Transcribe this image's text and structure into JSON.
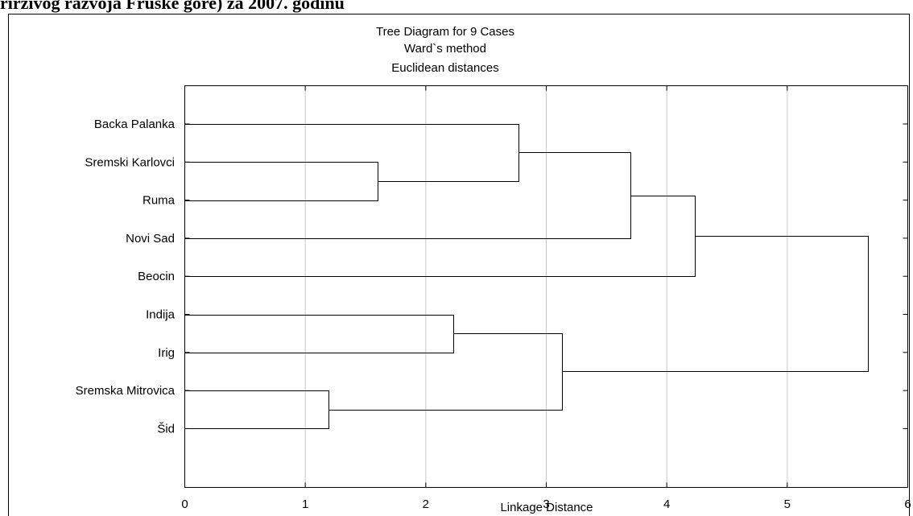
{
  "document": {
    "header_text": "rirzivog razvoja Fruske gore) za 2007. godinu"
  },
  "chart_data": {
    "type": "dendrogram",
    "title_lines": [
      "Tree Diagram for 9 Cases",
      "Ward`s method",
      "Euclidean distances"
    ],
    "xlabel": "Linkage Distance",
    "xlim": [
      0,
      6
    ],
    "xticks": [
      0,
      1,
      2,
      3,
      4,
      5,
      6
    ],
    "grid": true,
    "leaves": [
      "Backa Palanka",
      "Sremski Karlovci",
      "Ruma",
      "Novi Sad",
      "Beocin",
      "Indija",
      "Irig",
      "Sremska Mitrovica",
      "Šid"
    ],
    "merges": [
      {
        "id": "c1",
        "children": [
          "Sremska Mitrovica",
          "Šid"
        ],
        "distance": 1.19
      },
      {
        "id": "c2",
        "children": [
          "Sremski Karlovci",
          "Ruma"
        ],
        "distance": 1.6
      },
      {
        "id": "c3",
        "children": [
          "Indija",
          "Irig"
        ],
        "distance": 2.23
      },
      {
        "id": "c4",
        "children": [
          "Backa Palanka",
          "c2"
        ],
        "distance": 2.77
      },
      {
        "id": "c5",
        "children": [
          "c3",
          "c1"
        ],
        "distance": 3.13
      },
      {
        "id": "c6",
        "children": [
          "c4",
          "Novi Sad"
        ],
        "distance": 3.7
      },
      {
        "id": "c7",
        "children": [
          "c6",
          "Beocin"
        ],
        "distance": 4.23
      },
      {
        "id": "c8",
        "children": [
          "c7",
          "c5"
        ],
        "distance": 5.67
      }
    ],
    "colors": {
      "line": "#000000",
      "grid": "#c8c8c8",
      "frame": "#000000"
    }
  }
}
